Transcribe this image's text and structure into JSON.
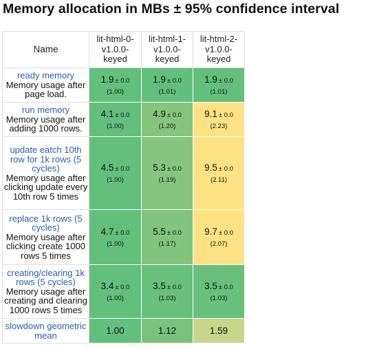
{
  "title": "Memory allocation in MBs ± 95% confidence interval",
  "chart_data": {
    "type": "table",
    "title": "Memory allocation in MBs ± 95% confidence interval",
    "name_header": "Name",
    "columns": [
      [
        "lit-html-0-",
        "v1.0.0-",
        "keyed"
      ],
      [
        "lit-html-1-",
        "v1.0.0-",
        "keyed"
      ],
      [
        "lit-html-2-",
        "v1.0.0-",
        "keyed"
      ]
    ],
    "rows": [
      {
        "name": "ready memory",
        "description": "Memory usage after page load.",
        "cells": [
          {
            "mean": "1.9",
            "ci": "± 0.0",
            "factor": "(1.00)",
            "color": "#63bf7c"
          },
          {
            "mean": "1.9",
            "ci": "± 0.0",
            "factor": "(1.01)",
            "color": "#63bf7c"
          },
          {
            "mean": "1.9",
            "ci": "± 0.0",
            "factor": "(1.01)",
            "color": "#63bf7c"
          }
        ]
      },
      {
        "name": "run memory",
        "description": "Memory usage after adding 1000 rows.",
        "cells": [
          {
            "mean": "4.1",
            "ci": "± 0.0",
            "factor": "(1.00)",
            "color": "#63bf7c"
          },
          {
            "mean": "4.9",
            "ci": "± 0.0",
            "factor": "(1.20)",
            "color": "#85c57d"
          },
          {
            "mean": "9.1",
            "ci": "± 0.0",
            "factor": "(2.23)",
            "color": "#fde383"
          }
        ]
      },
      {
        "name": "update eatch 10th row for 1k rows (5 cycles)",
        "description": "Memory usage after clicking update every 10th row 5 times",
        "cells": [
          {
            "mean": "4.5",
            "ci": "± 0.0",
            "factor": "(1.00)",
            "color": "#63bf7c"
          },
          {
            "mean": "5.3",
            "ci": "± 0.0",
            "factor": "(1.19)",
            "color": "#85c57d"
          },
          {
            "mean": "9.5",
            "ci": "± 0.0",
            "factor": "(2.11)",
            "color": "#fde383"
          }
        ]
      },
      {
        "name": "replace 1k rows (5 cycles)",
        "description": "Memory usage after clicking create 1000 rows 5 times",
        "cells": [
          {
            "mean": "4.7",
            "ci": "± 0.0",
            "factor": "(1.00)",
            "color": "#63bf7c"
          },
          {
            "mean": "5.5",
            "ci": "± 0.0",
            "factor": "(1.17)",
            "color": "#80c47d"
          },
          {
            "mean": "9.7",
            "ci": "± 0.0",
            "factor": "(2.07)",
            "color": "#fde383"
          }
        ]
      },
      {
        "name": "creating/clearing 1k rows (5 cycles)",
        "description": "Memory usage after creating and clearing 1000 rows 5 times",
        "cells": [
          {
            "mean": "3.4",
            "ci": "± 0.0",
            "factor": "(1.00)",
            "color": "#63bf7c"
          },
          {
            "mean": "3.5",
            "ci": "± 0.0",
            "factor": "(1.03)",
            "color": "#68c07c"
          },
          {
            "mean": "3.5",
            "ci": "± 0.0",
            "factor": "(1.03)",
            "color": "#68c07c"
          }
        ]
      }
    ],
    "geometric_mean": {
      "name": "slowdown geometric mean",
      "cells": [
        {
          "value": "1.00",
          "color": "#63bf7c"
        },
        {
          "value": "1.12",
          "color": "#79c27c"
        },
        {
          "value": "1.59",
          "color": "#c8d68c"
        }
      ]
    }
  }
}
